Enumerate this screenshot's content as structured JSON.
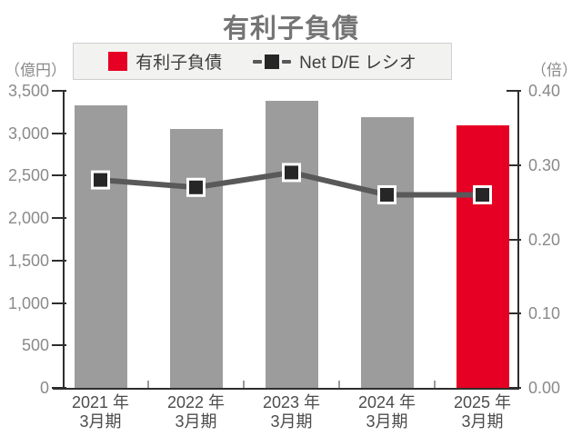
{
  "title": "有利子負債",
  "legend": {
    "bar_label": "有利子負債",
    "line_label": "Net D/E レシオ"
  },
  "left_axis": {
    "unit": "（億円）",
    "ticks": [
      {
        "value": 3500,
        "label": "3,500"
      },
      {
        "value": 3000,
        "label": "3,000"
      },
      {
        "value": 2500,
        "label": "2,500"
      },
      {
        "value": 2000,
        "label": "2,000"
      },
      {
        "value": 1500,
        "label": "1,500"
      },
      {
        "value": 1000,
        "label": "1,000"
      },
      {
        "value": 500,
        "label": "500"
      },
      {
        "value": 0,
        "label": "0"
      }
    ]
  },
  "right_axis": {
    "unit": "（倍）",
    "ticks": [
      {
        "value": 0.4,
        "label": "0.40"
      },
      {
        "value": 0.3,
        "label": "0.30"
      },
      {
        "value": 0.2,
        "label": "0.20"
      },
      {
        "value": 0.1,
        "label": "0.10"
      },
      {
        "value": 0.0,
        "label": "0.00"
      }
    ]
  },
  "colors": {
    "bar": "#9c9c9c",
    "bar_highlight": "#e60023",
    "line": "#595959",
    "marker": "#262626"
  },
  "chart_data": {
    "type": "bar",
    "title": "有利子負債",
    "categories": [
      "2021年3月期",
      "2022年3月期",
      "2023年3月期",
      "2024年3月期",
      "2025年3月期"
    ],
    "category_labels": [
      {
        "line1": "2021 年",
        "line2": "3月期"
      },
      {
        "line1": "2022 年",
        "line2": "3月期"
      },
      {
        "line1": "2023 年",
        "line2": "3月期"
      },
      {
        "line1": "2024 年",
        "line2": "3月期"
      },
      {
        "line1": "2025 年",
        "line2": "3月期"
      }
    ],
    "series": [
      {
        "name": "有利子負債",
        "type": "bar",
        "axis": "left",
        "unit": "億円",
        "values": [
          3330,
          3050,
          3380,
          3190,
          3090
        ],
        "colors": [
          "#9c9c9c",
          "#9c9c9c",
          "#9c9c9c",
          "#9c9c9c",
          "#e60023"
        ]
      },
      {
        "name": "Net D/E レシオ",
        "type": "line",
        "axis": "right",
        "unit": "倍",
        "values": [
          0.28,
          0.27,
          0.29,
          0.26,
          0.26
        ],
        "color": "#595959",
        "marker_color": "#262626"
      }
    ],
    "left_ylabel": "（億円）",
    "right_ylabel": "（倍）",
    "left_ylim": [
      0,
      3500
    ],
    "right_ylim": [
      0,
      0.4
    ],
    "grid": false,
    "legend_position": "top"
  }
}
